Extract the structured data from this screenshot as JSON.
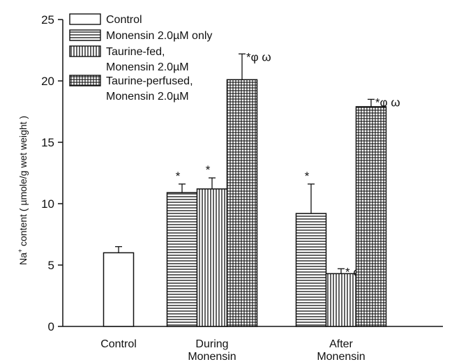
{
  "chart_data": {
    "type": "bar",
    "ylabel_prefix": "Na",
    "ylabel_sup": "+",
    "ylabel_rest": " content ( µmole/g wet weight )",
    "ylim": [
      0,
      25
    ],
    "yticks": [
      0,
      5,
      10,
      15,
      20,
      25
    ],
    "grid": false,
    "legend_position": "top-left",
    "groups": [
      {
        "label_lines": [
          "Control"
        ],
        "bars": [
          {
            "series": 0,
            "value": 6.0,
            "error": 0.5,
            "annotation": ""
          }
        ]
      },
      {
        "label_lines": [
          "During",
          "Monensin"
        ],
        "bars": [
          {
            "series": 1,
            "value": 10.9,
            "error": 0.7,
            "annotation": "*"
          },
          {
            "series": 2,
            "value": 11.2,
            "error": 0.9,
            "annotation": "*"
          },
          {
            "series": 3,
            "value": 20.1,
            "error": 2.1,
            "annotation": "*φ ω"
          }
        ]
      },
      {
        "label_lines": [
          "After",
          "Monensin"
        ],
        "bars": [
          {
            "series": 1,
            "value": 9.2,
            "error": 2.4,
            "annotation": "*"
          },
          {
            "series": 2,
            "value": 4.3,
            "error": 0.4,
            "annotation": "* φ"
          },
          {
            "series": 3,
            "value": 17.9,
            "error": 0.6,
            "annotation": "*φ ω"
          }
        ]
      }
    ],
    "series": [
      {
        "name_lines": [
          "Control"
        ],
        "pattern": "none"
      },
      {
        "name_lines": [
          "Monensin 2.0µM only"
        ],
        "pattern": "horizontal"
      },
      {
        "name_lines": [
          "Taurine-fed,",
          "Monensin 2.0µM"
        ],
        "pattern": "vertical"
      },
      {
        "name_lines": [
          "Taurine-perfused,",
          "Monensin 2.0µM"
        ],
        "pattern": "grid"
      }
    ]
  }
}
